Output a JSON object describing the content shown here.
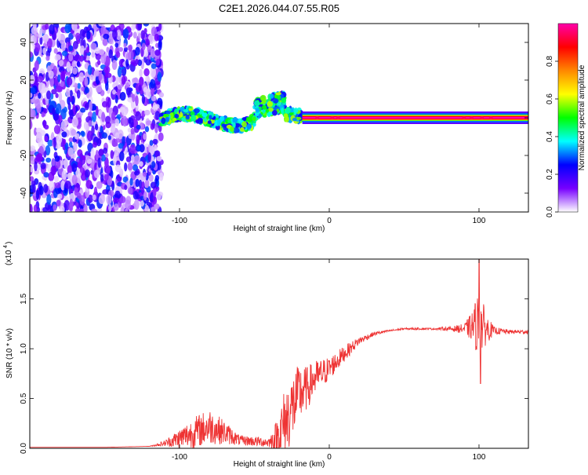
{
  "title": "C2E1.2026.044.07.55.R05",
  "chart_data": [
    {
      "type": "heatmap",
      "xlabel": "Height of straight line (km)",
      "ylabel": "Frequency (Hz)",
      "xlim": [
        -200,
        133
      ],
      "ylim": [
        -50,
        50
      ],
      "xticks": [
        -100,
        0,
        100
      ],
      "yticks": [
        -40,
        -20,
        0,
        20,
        40
      ],
      "regions": [
        {
          "name": "noise",
          "x_range": [
            -200,
            -112
          ],
          "y_range": [
            -50,
            50
          ],
          "amplitude_range": [
            0.02,
            0.3
          ]
        },
        {
          "name": "scatter",
          "x_range": [
            -112,
            -18
          ],
          "center_hz_range": [
            -6,
            11
          ],
          "amplitude_range": [
            0.2,
            0.6
          ]
        },
        {
          "name": "line",
          "x_range": [
            -18,
            133
          ],
          "center_hz": 0,
          "amplitude": 1.0
        }
      ],
      "colorbar": {
        "label": "Normalized spectral amplitude",
        "range": [
          0,
          1
        ],
        "ticks": [
          "0.0",
          "0.2",
          "0.4",
          "0.6",
          "0.8"
        ],
        "colors": [
          "#ffffff",
          "#7700ff",
          "#0000ff",
          "#00ffff",
          "#00ff00",
          "#ffff00",
          "#ff8800",
          "#ff0000",
          "#ff00aa"
        ]
      }
    },
    {
      "type": "line",
      "xlabel": "Height of straight line (km)",
      "ylabel": "SNR (10 * v/v)",
      "scale_label": "(x10",
      "scale_exp": "4",
      "xlim": [
        -200,
        133
      ],
      "ylim": [
        0,
        1.9
      ],
      "xticks": [
        -100,
        0,
        100
      ],
      "yticks": [
        "0.0",
        "0.5",
        "1.0",
        "1.5"
      ],
      "series": [
        {
          "name": "SNR",
          "color": "#ee3333",
          "x": [
            -200,
            -150,
            -120,
            -110,
            -100,
            -90,
            -80,
            -70,
            -60,
            -50,
            -40,
            -35,
            -30,
            -25,
            -20,
            -15,
            -10,
            -5,
            0,
            10,
            20,
            30,
            40,
            50,
            60,
            70,
            80,
            90,
            95,
            100,
            105,
            110,
            120,
            133
          ],
          "y": [
            0.01,
            0.01,
            0.02,
            0.05,
            0.1,
            0.16,
            0.22,
            0.16,
            0.08,
            0.07,
            0.06,
            0.1,
            0.25,
            0.4,
            0.55,
            0.6,
            0.7,
            0.75,
            0.8,
            0.95,
            1.08,
            1.15,
            1.18,
            1.2,
            1.2,
            1.2,
            1.2,
            1.2,
            1.22,
            1.25,
            1.2,
            1.18,
            1.17,
            1.17
          ],
          "noise": [
            0,
            0,
            0,
            0.03,
            0.1,
            0.16,
            0.18,
            0.12,
            0.05,
            0.05,
            0.05,
            0.2,
            0.35,
            0.35,
            0.3,
            0.22,
            0.18,
            0.15,
            0.12,
            0.08,
            0.04,
            0.02,
            0.01,
            0.01,
            0.01,
            0.01,
            0.02,
            0.05,
            0.14,
            0.35,
            0.15,
            0.04,
            0.02,
            0.02
          ]
        }
      ]
    }
  ]
}
